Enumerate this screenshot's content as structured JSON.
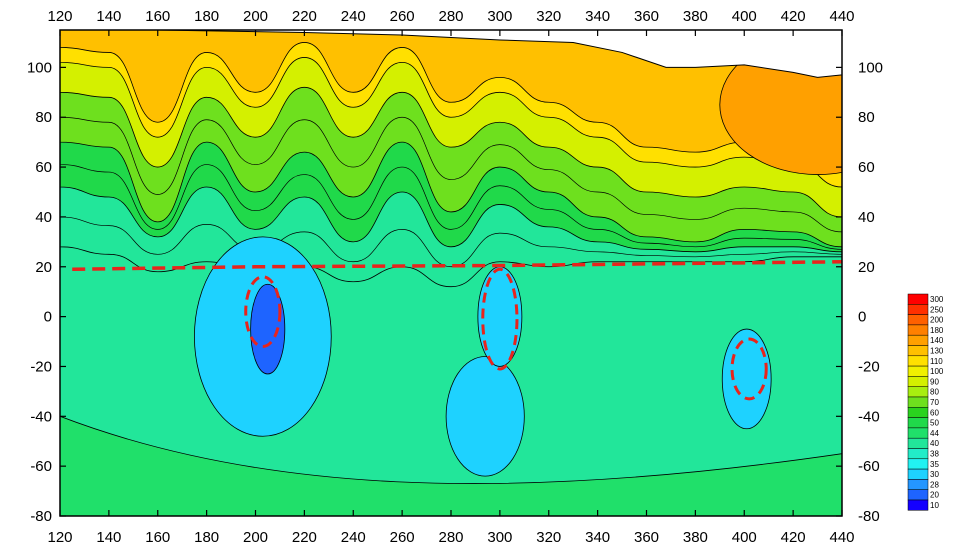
{
  "chart_data": {
    "type": "heatmap",
    "subtype": "filled-contour",
    "title": "",
    "xlabel": "",
    "ylabel": "",
    "xlim": [
      120,
      440
    ],
    "ylim": [
      -80,
      115
    ],
    "x_ticks": [
      120,
      140,
      160,
      180,
      200,
      220,
      240,
      260,
      280,
      300,
      320,
      340,
      360,
      380,
      400,
      420,
      440
    ],
    "y_ticks": [
      100,
      80,
      60,
      40,
      20,
      0,
      -20,
      -40,
      -60,
      -80
    ],
    "x_axis_position": "top-and-bottom",
    "y_axis_position": "left-and-right",
    "grid": false,
    "legend": "colorbar-right",
    "colorbar": {
      "levels": [
        10,
        20,
        28,
        30,
        35,
        38,
        40,
        44,
        50,
        60,
        70,
        80,
        90,
        100,
        110,
        130,
        140,
        180,
        200,
        250,
        300
      ],
      "colors": [
        "#1400ff",
        "#1e64ff",
        "#2496ff",
        "#1ed2ff",
        "#22f2f2",
        "#22ecc8",
        "#22e69a",
        "#20e06a",
        "#20d94a",
        "#2ad21e",
        "#6ee01e",
        "#a8ee10",
        "#d4f000",
        "#f0f000",
        "#ffe000",
        "#ffc000",
        "#ffa000",
        "#ff8000",
        "#ff6000",
        "#ff3000",
        "#ff0000"
      ]
    },
    "surface_top": [
      [
        120,
        115
      ],
      [
        160,
        115
      ],
      [
        220,
        114
      ],
      [
        260,
        113
      ],
      [
        300,
        111
      ],
      [
        330,
        110
      ],
      [
        350,
        106
      ],
      [
        368,
        100
      ],
      [
        380,
        100
      ],
      [
        400,
        101
      ],
      [
        420,
        98
      ],
      [
        430,
        96
      ],
      [
        440,
        97
      ]
    ],
    "profile_x": [
      120,
      140,
      160,
      180,
      200,
      220,
      240,
      260,
      280,
      300,
      320,
      340,
      360,
      380,
      400,
      420,
      440
    ],
    "contour_depths": [
      {
        "level": 90,
        "y": [
          90,
          88,
          60,
          88,
          72,
          92,
          72,
          90,
          68,
          78,
          68,
          60,
          50,
          48,
          52,
          50,
          40
        ]
      },
      {
        "level": 70,
        "y": [
          70,
          68,
          38,
          70,
          50,
          66,
          48,
          70,
          42,
          60,
          50,
          40,
          32,
          30,
          35,
          34,
          28
        ]
      },
      {
        "level": 50,
        "y": [
          52,
          48,
          32,
          52,
          35,
          48,
          30,
          50,
          28,
          45,
          36,
          30,
          27,
          26,
          28,
          28,
          26
        ]
      },
      {
        "level": 40,
        "y": [
          28,
          25,
          18,
          22,
          18,
          20,
          14,
          20,
          12,
          22,
          20,
          22,
          22,
          22,
          22,
          24,
          24
        ]
      }
    ],
    "low_anomalies": [
      {
        "center": [
          205,
          -5
        ],
        "rx": 7,
        "ry": 18,
        "min_value": 20
      },
      {
        "center": [
          203,
          -8
        ],
        "rx": 28,
        "ry": 40,
        "min_value": 30
      },
      {
        "center": [
          300,
          0
        ],
        "rx": 9,
        "ry": 20,
        "min_value": 30
      },
      {
        "center": [
          294,
          -40
        ],
        "rx": 16,
        "ry": 24,
        "min_value": 30
      },
      {
        "center": [
          401,
          -25
        ],
        "rx": 10,
        "ry": 20,
        "min_value": 30
      }
    ],
    "annotations": {
      "dashed_boundary": {
        "points": [
          [
            125,
            19
          ],
          [
            200,
            20
          ],
          [
            300,
            20.5
          ],
          [
            440,
            22
          ]
        ],
        "color": "#e8241c"
      },
      "dashed_ellipses": [
        {
          "center": [
            203,
            2
          ],
          "rx": 7,
          "ry": 14,
          "color": "#e8241c"
        },
        {
          "center": [
            300,
            -1
          ],
          "rx": 7,
          "ry": 20,
          "color": "#e8241c"
        },
        {
          "center": [
            402,
            -21
          ],
          "rx": 7,
          "ry": 12,
          "color": "#e8241c"
        }
      ]
    }
  }
}
